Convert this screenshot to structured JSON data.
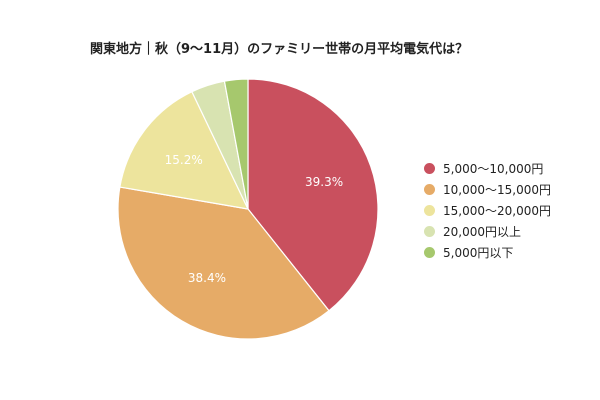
{
  "chart_data": {
    "type": "pie",
    "title": "関東地方｜秋（9〜11月）のファミリー世帯の月平均電気代は？",
    "categories": [
      "5,000〜10,000円",
      "10,000〜15,000円",
      "15,000〜20,000円",
      "20,000円以上",
      "5,000円以下"
    ],
    "values": [
      39.3,
      38.4,
      15.2,
      4.2,
      2.9
    ],
    "data_labels": [
      "39.3%",
      "38.4%",
      "15.2%",
      "",
      ""
    ],
    "colors": [
      "#c9505e",
      "#e6ab67",
      "#ede49d",
      "#d8e3b1",
      "#a6c86d"
    ],
    "legend": "right",
    "start_angle": "top",
    "direction": "clockwise"
  }
}
